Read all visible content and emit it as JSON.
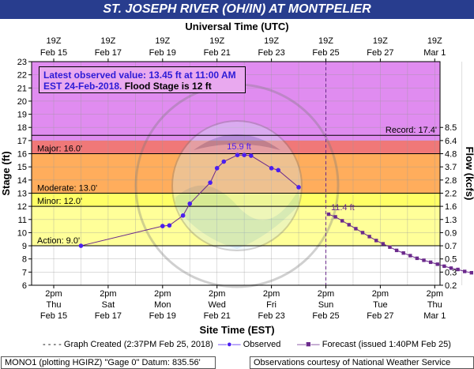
{
  "title": "ST. JOSEPH RIVER (OH/IN) AT MONTPELIER",
  "top_axis_title": "Universal Time (UTC)",
  "bottom_axis_title": "Site Time (EST)",
  "left_axis_title": "Stage (ft)",
  "right_axis_title": "Flow (kcfs)",
  "info": {
    "line1": "Latest observed value: 13.45 ft at 11:00 AM",
    "line2a": "EST 24-Feb-2018.",
    "line2b": " Flood Stage is 12 ft"
  },
  "legend": {
    "created": "Graph Created (2:37PM Feb 25, 2018)",
    "observed": "Observed",
    "forecast": "Forecast (issued 1:40PM Feb 25)"
  },
  "footer": {
    "left": "MONO1 (plotting HGIRZ) \"Gage 0\" Datum: 835.56'",
    "right": "Observations courtesy of National Weather Service"
  },
  "colors": {
    "record": "#e08cf0",
    "major": "#f07878",
    "moderate": "#ffad5c",
    "minor": "#ffff66",
    "action": "#ffff99",
    "normal": "#ffffff",
    "line": "#6b2a8c",
    "marker": "#4b1ef0"
  },
  "chart_data": {
    "type": "line",
    "title": "ST. JOSEPH RIVER (OH/IN) AT MONTPELIER",
    "xlabel": "Site Time (EST)",
    "ylabel": "Stage (ft)",
    "y2label": "Flow (kcfs)",
    "xlim_days": [
      0,
      15.5
    ],
    "ylim": [
      6,
      23
    ],
    "yticks": [
      6,
      7,
      8,
      9,
      10,
      11,
      12,
      13,
      14,
      15,
      16,
      17,
      18,
      19,
      20,
      21,
      22,
      23
    ],
    "bottom_ticks": [
      {
        "day": 0,
        "time": "2pm",
        "dow": "Thu",
        "date": "Feb 15"
      },
      {
        "day": 2,
        "time": "2pm",
        "dow": "Sat",
        "date": "Feb 17"
      },
      {
        "day": 4,
        "time": "2pm",
        "dow": "Mon",
        "date": "Feb 19"
      },
      {
        "day": 6,
        "time": "2pm",
        "dow": "Wed",
        "date": "Feb 21"
      },
      {
        "day": 8,
        "time": "2pm",
        "dow": "Fri",
        "date": "Feb 23"
      },
      {
        "day": 10,
        "time": "2pm",
        "dow": "Sun",
        "date": "Feb 25"
      },
      {
        "day": 12,
        "time": "2pm",
        "dow": "Tue",
        "date": "Feb 27"
      },
      {
        "day": 14,
        "time": "2pm",
        "dow": "Thu",
        "date": "Mar 1"
      }
    ],
    "top_ticks": [
      {
        "day": 0,
        "time": "19Z",
        "date": "Feb 15"
      },
      {
        "day": 2,
        "time": "19Z",
        "date": "Feb 17"
      },
      {
        "day": 4,
        "time": "19Z",
        "date": "Feb 19"
      },
      {
        "day": 6,
        "time": "19Z",
        "date": "Feb 21"
      },
      {
        "day": 8,
        "time": "19Z",
        "date": "Feb 23"
      },
      {
        "day": 10,
        "time": "19Z",
        "date": "Feb 25"
      },
      {
        "day": 12,
        "time": "19Z",
        "date": "Feb 27"
      },
      {
        "day": 14,
        "time": "19Z",
        "date": "Mar 1"
      }
    ],
    "flow_ticks": [
      {
        "stage": 6.0,
        "label": "0.2"
      },
      {
        "stage": 7.0,
        "label": "0.3"
      },
      {
        "stage": 8.0,
        "label": "0.5"
      },
      {
        "stage": 9.0,
        "label": "0.7"
      },
      {
        "stage": 10.0,
        "label": "0.9"
      },
      {
        "stage": 11.0,
        "label": "1.3"
      },
      {
        "stage": 12.0,
        "label": "1.6"
      },
      {
        "stage": 13.0,
        "label": "2.2"
      },
      {
        "stage": 14.0,
        "label": "2.8"
      },
      {
        "stage": 15.0,
        "label": "3.7"
      },
      {
        "stage": 16.0,
        "label": "4.8"
      },
      {
        "stage": 17.0,
        "label": "6.4"
      },
      {
        "stage": 18.0,
        "label": "8.5"
      }
    ],
    "flood_categories": [
      {
        "name": "Action",
        "stage": 9.0,
        "label": "Action: 9.0'"
      },
      {
        "name": "Minor",
        "stage": 12.0,
        "label": "Minor: 12.0'"
      },
      {
        "name": "Moderate",
        "stage": 13.0,
        "label": "Moderate: 13.0'"
      },
      {
        "name": "Major",
        "stage": 16.0,
        "label": "Major: 16.0'"
      },
      {
        "name": "Record",
        "stage": 17.4,
        "label": "Record: 17.4'"
      }
    ],
    "now_day": 10.0,
    "series": [
      {
        "name": "Observed",
        "x_days": [
          1.0,
          4.0,
          4.25,
          4.75,
          5.0,
          5.75,
          6.0,
          6.25,
          6.75,
          7.0,
          7.25,
          8.0,
          8.25,
          9.0
        ],
        "y": [
          9.0,
          10.5,
          10.55,
          11.3,
          12.2,
          13.8,
          14.9,
          15.4,
          15.9,
          15.9,
          15.85,
          14.9,
          14.75,
          13.45
        ],
        "peak_label": "15.9 ft"
      },
      {
        "name": "Forecast",
        "x_days": [
          10.1,
          10.35,
          10.6,
          10.85,
          11.1,
          11.35,
          11.6,
          11.85,
          12.1,
          12.35,
          12.6,
          12.85,
          13.1,
          13.35,
          13.6,
          13.85,
          14.1,
          14.35,
          14.6,
          14.85,
          15.1,
          15.35
        ],
        "y": [
          11.4,
          11.2,
          10.9,
          10.6,
          10.3,
          10.0,
          9.7,
          9.4,
          9.15,
          8.9,
          8.65,
          8.45,
          8.25,
          8.05,
          7.9,
          7.75,
          7.6,
          7.45,
          7.3,
          7.2,
          7.05,
          6.95
        ],
        "start_label": "11.4 ft"
      }
    ]
  }
}
